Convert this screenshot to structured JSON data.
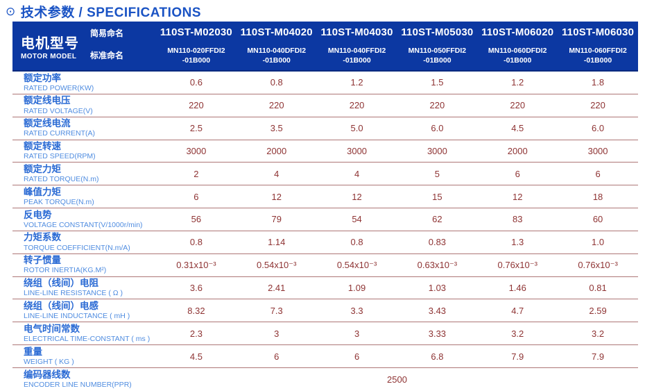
{
  "page_title": {
    "icon": "⊙",
    "text": "技术参数 / SPECIFICATIONS"
  },
  "colors": {
    "header_bg": "#0c38a2",
    "title_blue": "#1a53c4",
    "label_cn_blue": "#2a6ad4",
    "label_en_blue": "#4f8ce0",
    "value_maroon": "#8e3333",
    "row_separator": "#ad7676"
  },
  "table": {
    "corner": {
      "cn": "电机型号",
      "en": "MOTOR MODEL",
      "simple_name_label": "简易命名",
      "standard_name_label": "标准命名"
    },
    "columns": [
      {
        "simple": "110ST-M02030",
        "standard_line1": "MN110-020FFDI2",
        "standard_line2": "-01B000"
      },
      {
        "simple": "110ST-M04020",
        "standard_line1": "MN110-040DFDI2",
        "standard_line2": "-01B000"
      },
      {
        "simple": "110ST-M04030",
        "standard_line1": "MN110-040FFDI2",
        "standard_line2": "-01B000"
      },
      {
        "simple": "110ST-M05030",
        "standard_line1": "MN110-050FFDI2",
        "standard_line2": "-01B000"
      },
      {
        "simple": "110ST-M06020",
        "standard_line1": "MN110-060DFDI2",
        "standard_line2": "-01B000"
      },
      {
        "simple": "110ST-M06030",
        "standard_line1": "MN110-060FFDI2",
        "standard_line2": "-01B000"
      }
    ],
    "rows": [
      {
        "cn": "额定功率",
        "en": "RATED POWER(KW)",
        "values": [
          "0.6",
          "0.8",
          "1.2",
          "1.5",
          "1.2",
          "1.8"
        ]
      },
      {
        "cn": "额定线电压",
        "en": "RATED VOLTAGE(V)",
        "values": [
          "220",
          "220",
          "220",
          "220",
          "220",
          "220"
        ]
      },
      {
        "cn": "额定线电流",
        "en": "RATED CURRENT(A)",
        "values": [
          "2.5",
          "3.5",
          "5.0",
          "6.0",
          "4.5",
          "6.0"
        ]
      },
      {
        "cn": "额定转速",
        "en": "RATED SPEED(RPM)",
        "values": [
          "3000",
          "2000",
          "3000",
          "3000",
          "2000",
          "3000"
        ]
      },
      {
        "cn": "额定力矩",
        "en": "RATED TORQUE(N.m)",
        "values": [
          "2",
          "4",
          "4",
          "5",
          "6",
          "6"
        ]
      },
      {
        "cn": "峰值力矩",
        "en": "PEAK TORQUE(N.m)",
        "values": [
          "6",
          "12",
          "12",
          "15",
          "12",
          "18"
        ]
      },
      {
        "cn": "反电势",
        "en": "VOLTAGE CONSTANT(V/1000r/min)",
        "values": [
          "56",
          "79",
          "54",
          "62",
          "83",
          "60"
        ]
      },
      {
        "cn": "力矩系数",
        "en": "TORQUE COEFFICIENT(N.m/A)",
        "values": [
          "0.8",
          "1.14",
          "0.8",
          "0.83",
          "1.3",
          "1.0"
        ]
      },
      {
        "cn": "转子惯量",
        "en": "ROTOR INERTIA(KG.M²)",
        "values": [
          "0.31x10⁻³",
          "0.54x10⁻³",
          "0.54x10⁻³",
          "0.63x10⁻³",
          "0.76x10⁻³",
          "0.76x10⁻³"
        ]
      },
      {
        "cn": "绕组（线间）电阻",
        "en": "LINE-LINE RESISTANCE ( Ω )",
        "values": [
          "3.6",
          "2.41",
          "1.09",
          "1.03",
          "1.46",
          "0.81"
        ]
      },
      {
        "cn": "绕组（线间）电感",
        "en": "LINE-LINE INDUCTANCE ( mH )",
        "values": [
          "8.32",
          "7.3",
          "3.3",
          "3.43",
          "4.7",
          "2.59"
        ]
      },
      {
        "cn": "电气时间常数",
        "en": "ELECTRICAL TIME-CONSTANT ( ms )",
        "values": [
          "2.3",
          "3",
          "3",
          "3.33",
          "3.2",
          "3.2"
        ]
      },
      {
        "cn": "重量",
        "en": "WEIGHT ( KG )",
        "values": [
          "4.5",
          "6",
          "6",
          "6.8",
          "7.9",
          "7.9"
        ]
      },
      {
        "cn": "编码器线数",
        "en": "ENCODER LINE NUMBER(PPR)",
        "merged_value": "2500"
      }
    ]
  }
}
